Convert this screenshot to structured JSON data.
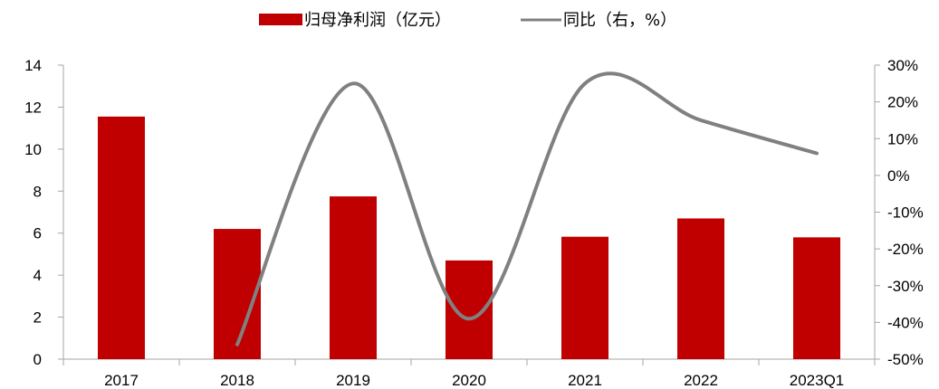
{
  "chart_data": {
    "type": "bar",
    "categories": [
      "2017",
      "2018",
      "2019",
      "2020",
      "2021",
      "2022",
      "2023Q1"
    ],
    "series": [
      {
        "name": "归母净利润（亿元）",
        "type": "bar",
        "axis": "left",
        "color": "#C00000",
        "values": [
          11.55,
          6.2,
          7.75,
          4.7,
          5.83,
          6.7,
          5.8
        ]
      },
      {
        "name": "同比（右，%）",
        "type": "line",
        "axis": "right",
        "color": "#808080",
        "smooth": true,
        "values": [
          null,
          -46,
          25,
          -39,
          25,
          15,
          6
        ]
      }
    ],
    "y_left": {
      "min": 0,
      "max": 14,
      "step": 2,
      "tick_labels": [
        "0",
        "2",
        "4",
        "6",
        "8",
        "10",
        "12",
        "14"
      ]
    },
    "y_right": {
      "min": -50,
      "max": 30,
      "step": 10,
      "tick_labels": [
        "-50%",
        "-40%",
        "-30%",
        "-20%",
        "-10%",
        "0%",
        "10%",
        "20%",
        "30%"
      ]
    },
    "legend_position": "top-center",
    "grid": false
  }
}
